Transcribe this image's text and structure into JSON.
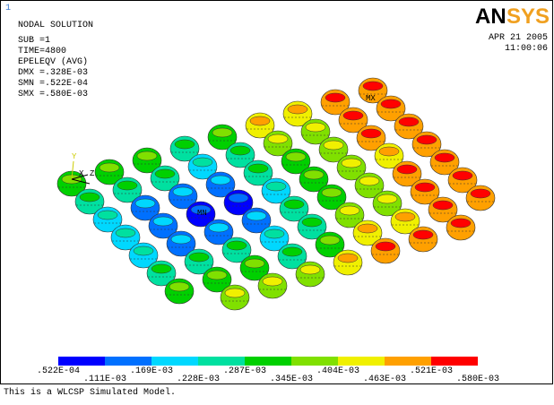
{
  "window": {
    "number": "1",
    "header": {
      "lines": [
        "NODAL SOLUTION",
        "SUB =1",
        "TIME=4800",
        "EPELEQV  (AVG)",
        "DMX =.328E-03",
        "SMN =.522E-04",
        "SMX =.580E-03"
      ]
    },
    "logo": {
      "left": "AN",
      "right": "SYS"
    },
    "date": "APR 21 2005",
    "time": "11:00:06",
    "markers": {
      "max": "MX",
      "min": "MN"
    },
    "axes": {
      "x": "X",
      "y": "Y",
      "z": "Z"
    },
    "legend": {
      "labels": [
        ".522E-04",
        ".111E-03",
        ".169E-03",
        ".228E-03",
        ".287E-03",
        ".345E-03",
        ".404E-03",
        ".463E-03",
        ".521E-03",
        ".580E-03"
      ]
    },
    "footer": "This is a WLCSP Simulated Model."
  }
}
